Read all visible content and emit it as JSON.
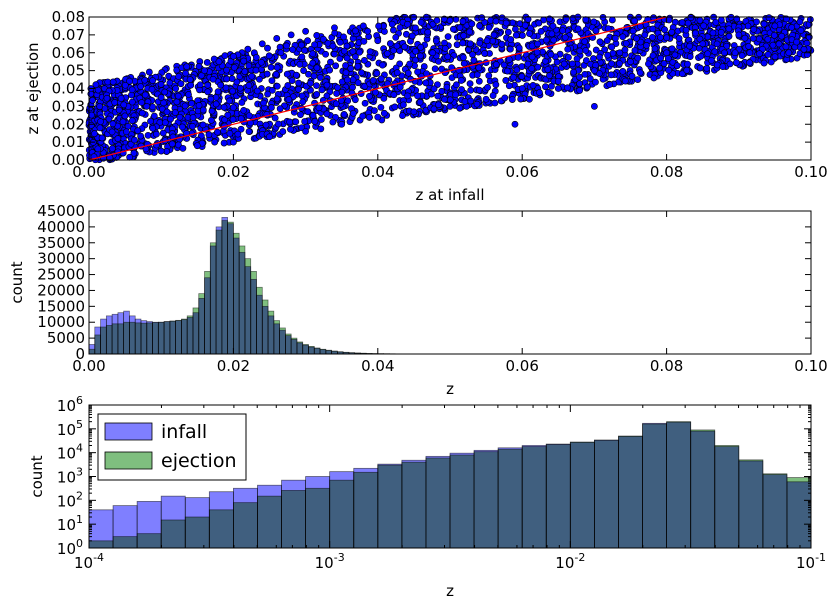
{
  "chart_data": [
    {
      "type": "scatter",
      "xlabel": "z at infall",
      "ylabel": "z at ejection",
      "xlim": [
        0,
        0.1
      ],
      "ylim": [
        0,
        0.08
      ],
      "xticks": [
        0,
        0.02,
        0.04,
        0.06,
        0.08,
        0.1
      ],
      "xtick_labels": [
        "0.00",
        "0.02",
        "0.04",
        "0.06",
        "0.08",
        "0.10"
      ],
      "yticks": [
        0,
        0.01,
        0.02,
        0.03,
        0.04,
        0.05,
        0.06,
        0.07,
        0.08
      ],
      "ytick_labels": [
        "0.00",
        "0.01",
        "0.02",
        "0.03",
        "0.04",
        "0.05",
        "0.06",
        "0.07",
        "0.08"
      ],
      "marker_color": "#0000ff",
      "line": {
        "x": [
          0,
          0.08
        ],
        "y": [
          0,
          0.08
        ],
        "color": "#ff0000"
      },
      "description_of_density": "dense cloud of points between ejection ≈ 0.6·infall and ejection ≈ infall + 0.03, saturating near origin",
      "points": [
        [
          0.002,
          0.001
        ],
        [
          0.004,
          0.012
        ],
        [
          0.006,
          0.022
        ],
        [
          0.008,
          0.03
        ],
        [
          0.01,
          0.035
        ],
        [
          0.012,
          0.04
        ],
        [
          0.014,
          0.045
        ],
        [
          0.016,
          0.05
        ],
        [
          0.018,
          0.055
        ],
        [
          0.02,
          0.058
        ],
        [
          0.022,
          0.062
        ],
        [
          0.024,
          0.065
        ],
        [
          0.026,
          0.068
        ],
        [
          0.028,
          0.07
        ],
        [
          0.03,
          0.072
        ],
        [
          0.034,
          0.074
        ],
        [
          0.038,
          0.075
        ],
        [
          0.042,
          0.076
        ],
        [
          0.046,
          0.077
        ],
        [
          0.05,
          0.078
        ],
        [
          0.01,
          0.005
        ],
        [
          0.015,
          0.008
        ],
        [
          0.02,
          0.01
        ],
        [
          0.025,
          0.013
        ],
        [
          0.03,
          0.016
        ],
        [
          0.035,
          0.02
        ],
        [
          0.04,
          0.024
        ],
        [
          0.045,
          0.027
        ],
        [
          0.05,
          0.03
        ],
        [
          0.055,
          0.034
        ],
        [
          0.06,
          0.04
        ],
        [
          0.065,
          0.044
        ],
        [
          0.07,
          0.05
        ],
        [
          0.075,
          0.055
        ],
        [
          0.08,
          0.06
        ],
        [
          0.085,
          0.065
        ],
        [
          0.09,
          0.07
        ],
        [
          0.095,
          0.075
        ],
        [
          0.098,
          0.066
        ],
        [
          0.07,
          0.03
        ],
        [
          0.061,
          0.034
        ],
        [
          0.059,
          0.02
        ],
        [
          0.065,
          0.04
        ],
        [
          0.088,
          0.06
        ],
        [
          0.092,
          0.068
        ],
        [
          0.084,
          0.071
        ]
      ]
    },
    {
      "type": "bar",
      "subtype": "overlapping-histogram",
      "xlabel": "z",
      "ylabel": "count",
      "xlim": [
        0,
        0.1
      ],
      "ylim": [
        0,
        45000
      ],
      "xticks": [
        0,
        0.02,
        0.04,
        0.06,
        0.08,
        0.1
      ],
      "xtick_labels": [
        "0.00",
        "0.02",
        "0.04",
        "0.06",
        "0.08",
        "0.10"
      ],
      "yticks": [
        0,
        5000,
        10000,
        15000,
        20000,
        25000,
        30000,
        35000,
        40000,
        45000
      ],
      "ytick_labels": [
        "0",
        "5000",
        "10000",
        "15000",
        "20000",
        "25000",
        "30000",
        "35000",
        "40000",
        "45000"
      ],
      "bin_width": 0.0008,
      "bin_start": 0,
      "series": [
        {
          "name": "infall",
          "color": "#7f7fff",
          "values": [
            3000,
            8500,
            11000,
            12000,
            12500,
            13000,
            13500,
            12000,
            11000,
            10500,
            10200,
            10000,
            10000,
            10200,
            10300,
            10500,
            10800,
            11500,
            13000,
            17500,
            24000,
            34000,
            40000,
            43000,
            41000,
            36500,
            32000,
            27500,
            23500,
            18500,
            15000,
            12000,
            9500,
            7500,
            5800,
            4600,
            3500,
            2800,
            2200,
            1800,
            1400,
            1100,
            850,
            650,
            500,
            380,
            290,
            220,
            170,
            130,
            100,
            80,
            60,
            45,
            30,
            20,
            10
          ]
        },
        {
          "name": "ejection",
          "color": "#7fbf7f",
          "values": [
            1500,
            6000,
            8500,
            9000,
            9500,
            9500,
            10000,
            10000,
            9800,
            9700,
            9800,
            9900,
            10000,
            10200,
            10400,
            10600,
            11000,
            12000,
            14500,
            19000,
            26000,
            35000,
            39000,
            42000,
            41500,
            38000,
            34000,
            30000,
            26000,
            21000,
            17000,
            13500,
            10500,
            8200,
            6300,
            5000,
            3800,
            3000,
            2400,
            1900,
            1500,
            1200,
            950,
            720,
            550,
            420,
            320,
            250,
            190,
            140,
            110,
            85,
            65,
            48,
            33,
            22,
            12
          ]
        }
      ]
    },
    {
      "type": "bar",
      "subtype": "overlapping-histogram-log",
      "xlabel": "z",
      "ylabel": "count",
      "xscale": "log",
      "yscale": "log",
      "xlim": [
        0.0001,
        0.1
      ],
      "ylim": [
        1,
        1000000
      ],
      "xtick_labels": [
        {
          "base": "10",
          "exp": "-4"
        },
        {
          "base": "10",
          "exp": "-3"
        },
        {
          "base": "10",
          "exp": "-2"
        },
        {
          "base": "10",
          "exp": "-1"
        }
      ],
      "ytick_labels": [
        {
          "base": "10",
          "exp": "0"
        },
        {
          "base": "10",
          "exp": "1"
        },
        {
          "base": "10",
          "exp": "2"
        },
        {
          "base": "10",
          "exp": "3"
        },
        {
          "base": "10",
          "exp": "4"
        },
        {
          "base": "10",
          "exp": "5"
        },
        {
          "base": "10",
          "exp": "6"
        }
      ],
      "legend_position": "top-left",
      "series": [
        {
          "name": "infall",
          "color": "#7f7fff",
          "values": [
            40,
            60,
            90,
            150,
            130,
            230,
            320,
            430,
            700,
            1000,
            1600,
            2200,
            3300,
            4800,
            7000,
            9500,
            12500,
            16000,
            20000,
            23000,
            27000,
            34000,
            48000,
            170000,
            190000,
            80000,
            18000,
            4500,
            1200,
            600
          ]
        },
        {
          "name": "ejection",
          "color": "#7fbf7f",
          "values": [
            2,
            3,
            4,
            15,
            20,
            40,
            80,
            150,
            260,
            320,
            700,
            1500,
            3000,
            4000,
            6000,
            8000,
            11000,
            14000,
            18000,
            22000,
            28000,
            33000,
            50000,
            160000,
            200000,
            90000,
            20000,
            5000,
            1300,
            900
          ]
        }
      ]
    }
  ]
}
